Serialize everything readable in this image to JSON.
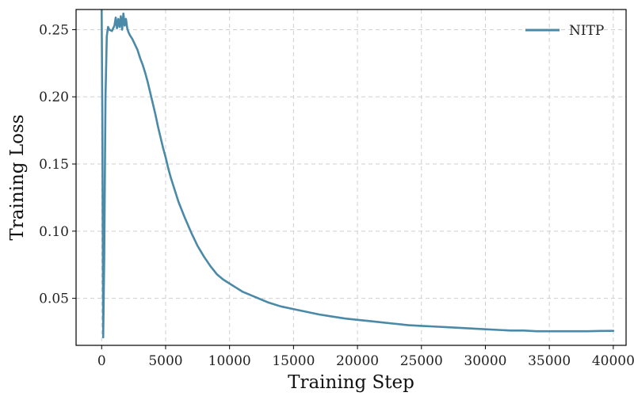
{
  "chart_data": {
    "type": "line",
    "title": "",
    "xlabel": "Training Step",
    "ylabel": "Training Loss",
    "xlim": [
      -2000,
      41000
    ],
    "ylim": [
      0.015,
      0.265
    ],
    "xticks": [
      0,
      5000,
      10000,
      15000,
      20000,
      25000,
      30000,
      35000,
      40000
    ],
    "yticks": [
      0.05,
      0.1,
      0.15,
      0.2,
      0.25
    ],
    "xtick_labels": [
      "0",
      "5000",
      "10000",
      "15000",
      "20000",
      "25000",
      "30000",
      "35000",
      "40000"
    ],
    "ytick_labels": [
      "0.05",
      "0.10",
      "0.15",
      "0.20",
      "0.25"
    ],
    "grid": true,
    "legend_position": "top-right",
    "series": [
      {
        "name": "NITP",
        "color": "#4a8aa8",
        "x": [
          0,
          50,
          120,
          200,
          300,
          400,
          500,
          600,
          800,
          1000,
          1100,
          1200,
          1300,
          1400,
          1500,
          1600,
          1700,
          1800,
          1900,
          2000,
          2100,
          2200,
          2400,
          2600,
          2800,
          3000,
          3200,
          3400,
          3600,
          3800,
          4000,
          4200,
          4400,
          4600,
          4800,
          5000,
          5100,
          5200,
          5400,
          5700,
          6000,
          6500,
          7000,
          7500,
          8000,
          8500,
          9000,
          9500,
          10000,
          10500,
          11000,
          12000,
          13000,
          14000,
          15000,
          16000,
          17000,
          18000,
          19000,
          20000,
          21000,
          22000,
          23000,
          24000,
          25000,
          26000,
          27000,
          28000,
          29000,
          30000,
          31000,
          32000,
          33000,
          34000,
          35000,
          36000,
          37000,
          38000,
          39000,
          40000
        ],
        "y": [
          0.265,
          0.19,
          0.021,
          0.08,
          0.2,
          0.245,
          0.252,
          0.25,
          0.249,
          0.253,
          0.259,
          0.251,
          0.258,
          0.252,
          0.26,
          0.25,
          0.262,
          0.253,
          0.258,
          0.251,
          0.248,
          0.246,
          0.243,
          0.239,
          0.235,
          0.229,
          0.224,
          0.218,
          0.211,
          0.203,
          0.195,
          0.187,
          0.178,
          0.17,
          0.162,
          0.155,
          0.151,
          0.147,
          0.14,
          0.131,
          0.122,
          0.11,
          0.099,
          0.089,
          0.081,
          0.074,
          0.068,
          0.064,
          0.061,
          0.058,
          0.055,
          0.051,
          0.047,
          0.044,
          0.042,
          0.04,
          0.038,
          0.0365,
          0.035,
          0.034,
          0.033,
          0.032,
          0.031,
          0.03,
          0.0295,
          0.029,
          0.0285,
          0.028,
          0.0275,
          0.027,
          0.0265,
          0.026,
          0.026,
          0.0255,
          0.0255,
          0.0255,
          0.0255,
          0.0255,
          0.0257,
          0.0258
        ]
      }
    ]
  }
}
